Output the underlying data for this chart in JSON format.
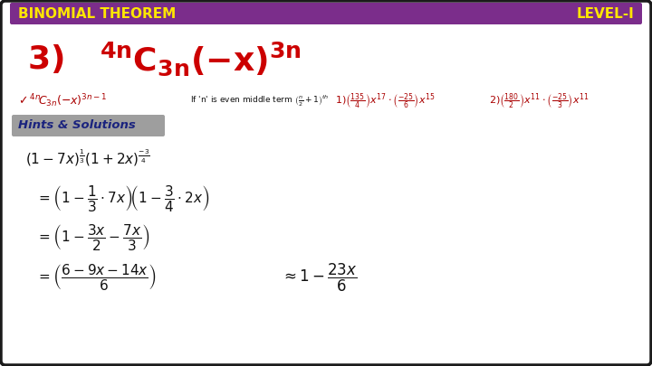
{
  "title_left": "BINOMIAL THEOREM",
  "title_right": "LEVEL-I",
  "title_bg_color": "#7B2D8B",
  "title_text_color": "#FFE600",
  "bg_color": "#FFFFFF",
  "border_color": "#1a1a1a",
  "hints_label": "Hints & Solutions",
  "hints_bg": "#9E9E9E",
  "red_color": "#CC0000",
  "dark_red": "#AA0000",
  "black": "#111111",
  "blue_dark": "#1A237E",
  "fig_w": 7.2,
  "fig_h": 4.05,
  "dpi": 100
}
